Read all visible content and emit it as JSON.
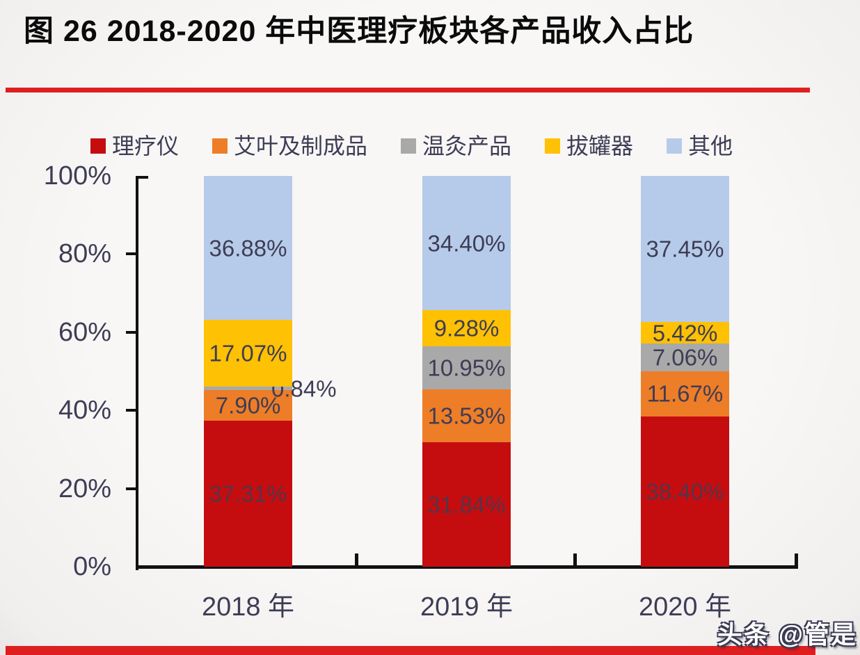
{
  "figure": {
    "title": "图 26 2018-2020 年中医理疗板块各产品收入占比",
    "watermark": "头条 @管是"
  },
  "colors": {
    "accent_rule": "#df1f1f",
    "label_text": "#3e3d55",
    "axis_line": "#111111",
    "background": "#f7f6f4"
  },
  "y_axis": {
    "tick_labels": [
      "100%",
      "80%",
      "60%",
      "40%",
      "20%",
      "0%"
    ]
  },
  "chart_data": {
    "type": "bar",
    "subtype": "stacked-100-percent",
    "title": "图 26 2018-2020 年中医理疗板块各产品收入占比",
    "categories": [
      "2018 年",
      "2019 年",
      "2020 年"
    ],
    "series": [
      {
        "name": "理疗仪",
        "color": "#c50d10",
        "values": [
          37.31,
          31.84,
          38.4
        ]
      },
      {
        "name": "艾叶及制成品",
        "color": "#ee7d27",
        "values": [
          7.9,
          13.53,
          11.67
        ]
      },
      {
        "name": "温灸产品",
        "color": "#a9a9a9",
        "values": [
          0.84,
          10.95,
          7.06
        ]
      },
      {
        "name": "拔罐器",
        "color": "#ffc103",
        "values": [
          17.07,
          9.28,
          5.42
        ]
      },
      {
        "name": "其他",
        "color": "#b6cbea",
        "values": [
          36.88,
          34.4,
          37.45
        ]
      }
    ],
    "value_suffix": "%",
    "value_decimals": 2,
    "ylim": [
      0,
      100
    ],
    "grid": false,
    "legend_position": "top",
    "data_labels": true
  }
}
